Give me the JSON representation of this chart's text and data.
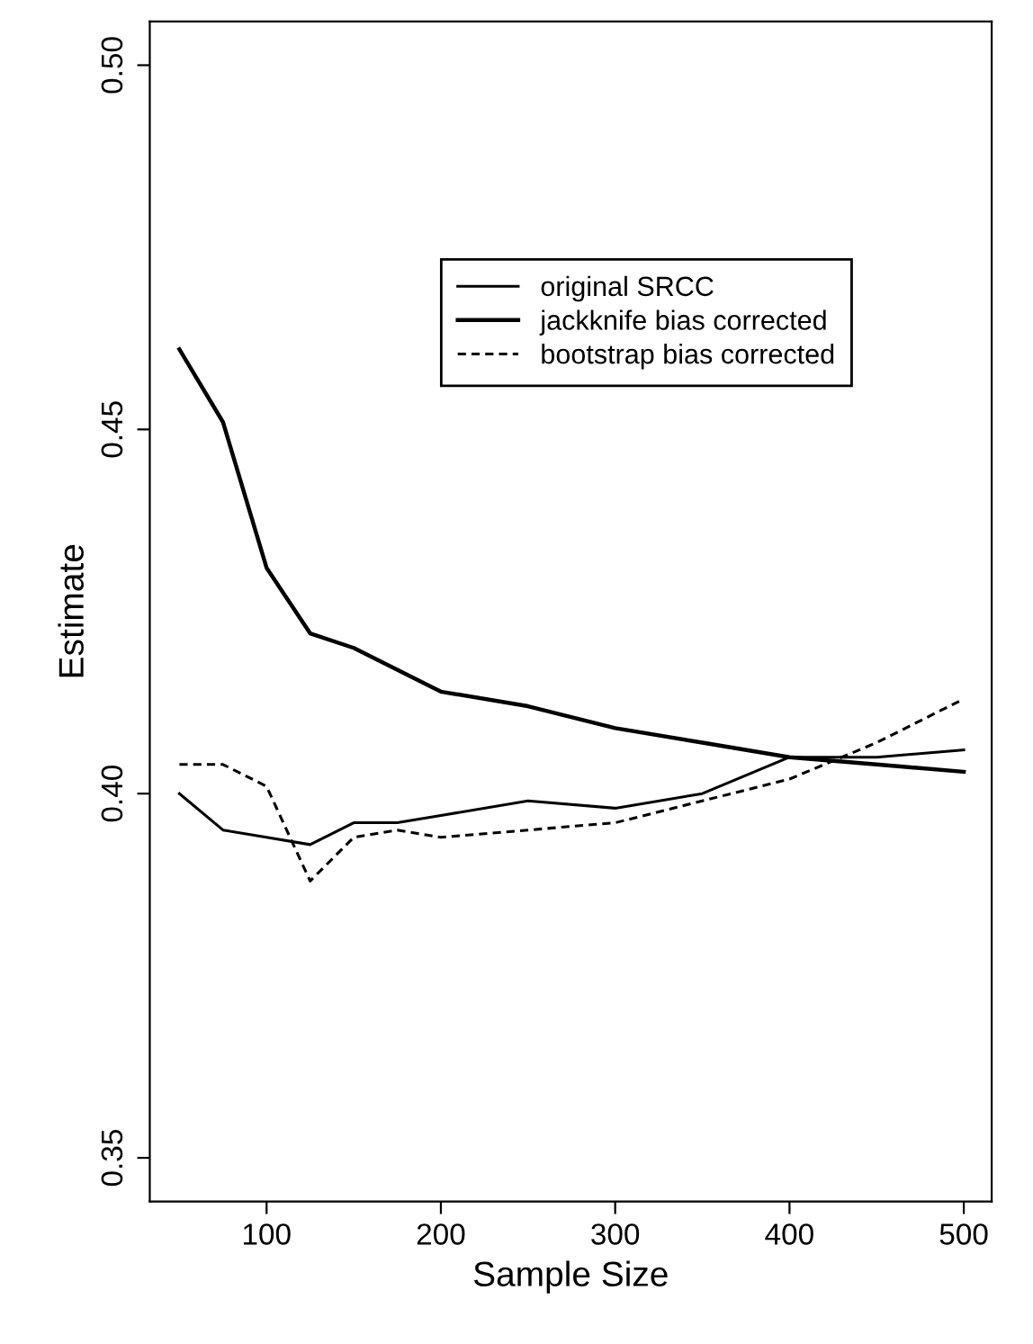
{
  "chart_data": {
    "type": "line",
    "xlabel": "Sample Size",
    "ylabel": "Estimate",
    "x": [
      50,
      75,
      100,
      125,
      150,
      175,
      200,
      250,
      300,
      350,
      400,
      450,
      500
    ],
    "series": [
      {
        "name": "original SRCC",
        "color": "#000000",
        "line_style": "solid",
        "values": [
          0.4,
          0.395,
          0.394,
          0.393,
          0.396,
          0.396,
          0.397,
          0.399,
          0.398,
          0.4,
          0.405,
          0.405,
          0.406
        ]
      },
      {
        "name": "jackknife bias corrected",
        "color": "#000000",
        "line_style": "solid",
        "x": [
          50,
          75,
          100,
          125,
          150,
          200,
          250,
          300,
          350,
          400,
          450,
          500
        ],
        "values": [
          0.461,
          0.451,
          0.431,
          0.422,
          0.42,
          0.414,
          0.412,
          0.409,
          0.407,
          0.405,
          0.404,
          0.403
        ]
      },
      {
        "name": "bootstrap bias corrected",
        "color": "#000000",
        "line_style": "dashed",
        "values": [
          0.404,
          0.404,
          0.401,
          0.388,
          0.394,
          0.395,
          0.394,
          0.395,
          0.396,
          0.399,
          0.402,
          0.407,
          0.413
        ]
      }
    ],
    "xlim": [
      33,
      516
    ],
    "ylim": [
      0.344,
      0.506
    ],
    "xticks": [
      100,
      200,
      300,
      400,
      500
    ],
    "yticks": [
      {
        "value": 0.35,
        "label": "0.35"
      },
      {
        "value": 0.4,
        "label": "0.40"
      },
      {
        "value": 0.45,
        "label": "0.45"
      },
      {
        "value": 0.5,
        "label": "0.50"
      }
    ],
    "grid": false,
    "legend": "top right",
    "marker": "none"
  }
}
